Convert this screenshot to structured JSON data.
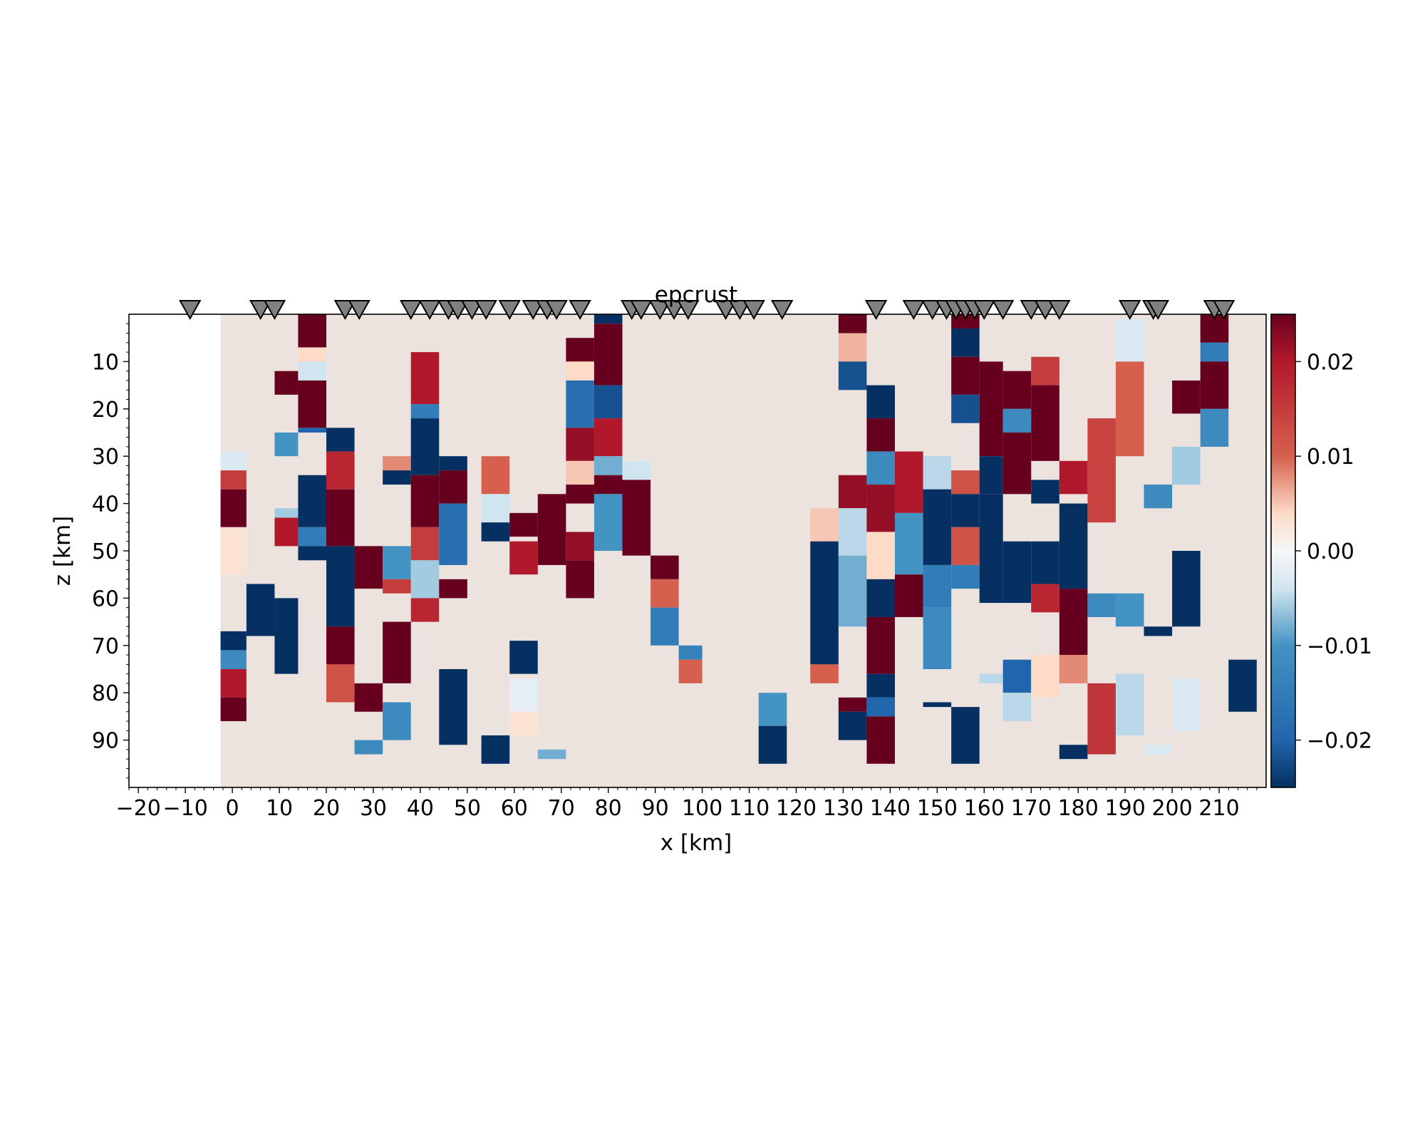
{
  "chart_data": {
    "type": "heatmap",
    "title": "epcrust",
    "xlabel": "x [km]",
    "ylabel": "z [km]",
    "xlim": [
      -22,
      220
    ],
    "ylim": [
      100,
      0
    ],
    "x_ticks": [
      "−20",
      "−10",
      "0",
      "10",
      "20",
      "30",
      "40",
      "50",
      "60",
      "70",
      "80",
      "90",
      "100",
      "110",
      "120",
      "130",
      "140",
      "150",
      "160",
      "170",
      "180",
      "190",
      "200",
      "210"
    ],
    "x_tick_values": [
      -20,
      -10,
      0,
      10,
      20,
      30,
      40,
      50,
      60,
      70,
      80,
      90,
      100,
      110,
      120,
      130,
      140,
      150,
      160,
      170,
      180,
      190,
      200,
      210
    ],
    "y_ticks": [
      "10",
      "20",
      "30",
      "40",
      "50",
      "60",
      "70",
      "80",
      "90"
    ],
    "y_tick_values": [
      10,
      20,
      30,
      40,
      50,
      60,
      70,
      80,
      90
    ],
    "colorbar": {
      "min": -0.025,
      "max": 0.025,
      "ticks": [
        "0.02",
        "0.01",
        "0.00",
        "−0.01",
        "−0.02"
      ],
      "tick_values": [
        0.02,
        0.01,
        0.0,
        -0.01,
        -0.02
      ],
      "colormap": "diverging blue-white-red",
      "colors": {
        "neg": "#053061",
        "mid": "#f7f7f7",
        "pos": "#67001f"
      }
    },
    "background_value": 0.001,
    "field_x_start": -2.5,
    "stations_x": [
      -9,
      6,
      9,
      24,
      27,
      38,
      42,
      46,
      48,
      51,
      54,
      59,
      64,
      67,
      69,
      74,
      85,
      87,
      91,
      94,
      97,
      105,
      108,
      111,
      117,
      137,
      145,
      149,
      152,
      154,
      156,
      158,
      160,
      164,
      170,
      173,
      176,
      191,
      196,
      197,
      209,
      211
    ],
    "anomaly_columns": [
      {
        "x0": -2.5,
        "x1": 3,
        "cells": [
          [
            29,
            33,
            -0.003
          ],
          [
            33,
            37,
            0.015
          ],
          [
            37,
            45,
            0.025
          ],
          [
            45,
            55,
            0.003
          ],
          [
            67,
            71,
            -0.025
          ],
          [
            71,
            75,
            -0.012
          ],
          [
            75,
            81,
            0.02
          ],
          [
            81,
            86,
            0.025
          ]
        ]
      },
      {
        "x0": 3,
        "x1": 9,
        "cells": [
          [
            57,
            68,
            -0.025
          ]
        ]
      },
      {
        "x0": 9,
        "x1": 14,
        "cells": [
          [
            12,
            17,
            0.025
          ],
          [
            25,
            30,
            -0.01
          ],
          [
            41,
            43,
            -0.006
          ],
          [
            43,
            49,
            0.02
          ],
          [
            60,
            76,
            -0.025
          ]
        ]
      },
      {
        "x0": 14,
        "x1": 20,
        "cells": [
          [
            0,
            7,
            0.025
          ],
          [
            7,
            10,
            0.004
          ],
          [
            10,
            14,
            -0.004
          ],
          [
            14,
            24,
            0.025
          ],
          [
            24,
            25,
            -0.02
          ],
          [
            34,
            45,
            -0.025
          ],
          [
            45,
            49,
            -0.015
          ],
          [
            49,
            52,
            -0.025
          ]
        ]
      },
      {
        "x0": 20,
        "x1": 26,
        "cells": [
          [
            24,
            29,
            -0.025
          ],
          [
            29,
            37,
            0.018
          ],
          [
            37,
            49,
            0.025
          ],
          [
            49,
            66,
            -0.025
          ],
          [
            66,
            74,
            0.025
          ],
          [
            74,
            82,
            0.012
          ]
        ]
      },
      {
        "x0": 26,
        "x1": 32,
        "cells": [
          [
            49,
            58,
            0.025
          ],
          [
            78,
            84,
            0.025
          ],
          [
            90,
            93,
            -0.012
          ]
        ]
      },
      {
        "x0": 32,
        "x1": 38,
        "cells": [
          [
            30,
            33,
            0.008
          ],
          [
            33,
            36,
            -0.025
          ],
          [
            49,
            56,
            -0.01
          ],
          [
            56,
            59,
            0.015
          ],
          [
            65,
            78,
            0.025
          ],
          [
            82,
            90,
            -0.012
          ]
        ]
      },
      {
        "x0": 38,
        "x1": 44,
        "cells": [
          [
            8,
            19,
            0.02
          ],
          [
            19,
            22,
            -0.015
          ],
          [
            22,
            34,
            -0.025
          ],
          [
            34,
            45,
            0.025
          ],
          [
            45,
            52,
            0.015
          ],
          [
            52,
            60,
            -0.006
          ],
          [
            60,
            65,
            0.018
          ]
        ]
      },
      {
        "x0": 44,
        "x1": 50,
        "cells": [
          [
            30,
            33,
            -0.025
          ],
          [
            33,
            40,
            0.025
          ],
          [
            40,
            53,
            -0.018
          ],
          [
            56,
            60,
            0.025
          ],
          [
            75,
            91,
            -0.025
          ]
        ]
      },
      {
        "x0": 53,
        "x1": 59,
        "cells": [
          [
            30,
            38,
            0.01
          ],
          [
            38,
            44,
            -0.004
          ],
          [
            44,
            48,
            -0.025
          ],
          [
            89,
            95,
            -0.025
          ]
        ]
      },
      {
        "x0": 59,
        "x1": 65,
        "cells": [
          [
            42,
            47,
            0.025
          ],
          [
            48,
            55,
            0.02
          ],
          [
            69,
            76,
            -0.025
          ],
          [
            77,
            84,
            -0.002
          ],
          [
            84,
            89,
            0.003
          ]
        ]
      },
      {
        "x0": 65,
        "x1": 71,
        "cells": [
          [
            38,
            53,
            0.025
          ],
          [
            92,
            94,
            -0.008
          ]
        ]
      },
      {
        "x0": 71,
        "x1": 77,
        "cells": [
          [
            5,
            10,
            0.025
          ],
          [
            10,
            14,
            0.004
          ],
          [
            14,
            24,
            -0.018
          ],
          [
            24,
            31,
            0.022
          ],
          [
            31,
            36,
            0.005
          ],
          [
            36,
            40,
            0.025
          ],
          [
            46,
            52,
            0.022
          ],
          [
            52,
            60,
            0.025
          ]
        ]
      },
      {
        "x0": 77,
        "x1": 83,
        "cells": [
          [
            0,
            2,
            -0.025
          ],
          [
            2,
            15,
            0.025
          ],
          [
            15,
            22,
            -0.022
          ],
          [
            22,
            30,
            0.02
          ],
          [
            30,
            34,
            -0.008
          ],
          [
            34,
            38,
            0.025
          ],
          [
            38,
            50,
            -0.01
          ]
        ]
      },
      {
        "x0": 83,
        "x1": 89,
        "cells": [
          [
            31,
            35,
            -0.004
          ],
          [
            35,
            51,
            0.025
          ]
        ]
      },
      {
        "x0": 89,
        "x1": 95,
        "cells": [
          [
            51,
            56,
            0.025
          ],
          [
            56,
            62,
            0.01
          ],
          [
            62,
            70,
            -0.015
          ]
        ]
      },
      {
        "x0": 95,
        "x1": 100,
        "cells": [
          [
            70,
            73,
            -0.014
          ],
          [
            73,
            78,
            0.01
          ]
        ]
      },
      {
        "x0": 112,
        "x1": 118,
        "cells": [
          [
            80,
            87,
            -0.01
          ],
          [
            87,
            95,
            -0.025
          ]
        ]
      },
      {
        "x0": 123,
        "x1": 129,
        "cells": [
          [
            41,
            48,
            0.005
          ],
          [
            48,
            74,
            -0.025
          ],
          [
            74,
            78,
            0.01
          ]
        ]
      },
      {
        "x0": 129,
        "x1": 135,
        "cells": [
          [
            0,
            4,
            0.025
          ],
          [
            4,
            10,
            0.006
          ],
          [
            10,
            16,
            -0.022
          ],
          [
            34,
            41,
            0.022
          ],
          [
            41,
            51,
            -0.005
          ],
          [
            51,
            66,
            -0.008
          ],
          [
            81,
            84,
            0.025
          ],
          [
            84,
            90,
            -0.025
          ]
        ]
      },
      {
        "x0": 135,
        "x1": 141,
        "cells": [
          [
            15,
            22,
            -0.025
          ],
          [
            22,
            29,
            0.025
          ],
          [
            29,
            36,
            -0.012
          ],
          [
            36,
            46,
            0.022
          ],
          [
            46,
            56,
            0.004
          ],
          [
            56,
            64,
            -0.025
          ],
          [
            64,
            76,
            0.025
          ],
          [
            76,
            81,
            -0.025
          ],
          [
            81,
            85,
            -0.02
          ],
          [
            85,
            95,
            0.025
          ]
        ]
      },
      {
        "x0": 141,
        "x1": 147,
        "cells": [
          [
            29,
            42,
            0.02
          ],
          [
            42,
            55,
            -0.01
          ],
          [
            55,
            64,
            0.025
          ]
        ]
      },
      {
        "x0": 147,
        "x1": 153,
        "cells": [
          [
            30,
            37,
            -0.005
          ],
          [
            37,
            53,
            -0.025
          ],
          [
            53,
            62,
            -0.015
          ],
          [
            62,
            75,
            -0.012
          ],
          [
            82,
            83,
            -0.025
          ]
        ]
      },
      {
        "x0": 153,
        "x1": 159,
        "cells": [
          [
            0,
            3,
            0.025
          ],
          [
            3,
            9,
            -0.025
          ],
          [
            9,
            17,
            0.025
          ],
          [
            17,
            23,
            -0.022
          ],
          [
            33,
            38,
            0.012
          ],
          [
            38,
            45,
            -0.025
          ],
          [
            45,
            53,
            0.012
          ],
          [
            53,
            58,
            -0.015
          ],
          [
            83,
            95,
            -0.025
          ]
        ]
      },
      {
        "x0": 159,
        "x1": 164,
        "cells": [
          [
            10,
            18,
            0.025
          ],
          [
            18,
            30,
            0.025
          ],
          [
            30,
            38,
            -0.025
          ],
          [
            38,
            61,
            -0.025
          ],
          [
            76,
            78,
            -0.005
          ]
        ]
      },
      {
        "x0": 164,
        "x1": 170,
        "cells": [
          [
            12,
            20,
            0.025
          ],
          [
            20,
            25,
            -0.012
          ],
          [
            25,
            38,
            0.025
          ],
          [
            48,
            61,
            -0.025
          ],
          [
            73,
            80,
            -0.02
          ],
          [
            80,
            86,
            -0.005
          ]
        ]
      },
      {
        "x0": 170,
        "x1": 176,
        "cells": [
          [
            9,
            15,
            0.015
          ],
          [
            15,
            31,
            0.025
          ],
          [
            35,
            40,
            -0.025
          ],
          [
            48,
            57,
            -0.025
          ],
          [
            57,
            63,
            0.018
          ],
          [
            72,
            81,
            0.004
          ]
        ]
      },
      {
        "x0": 176,
        "x1": 182,
        "cells": [
          [
            31,
            38,
            0.02
          ],
          [
            40,
            58,
            -0.025
          ],
          [
            58,
            72,
            0.025
          ],
          [
            72,
            78,
            0.008
          ],
          [
            91,
            94,
            -0.025
          ]
        ]
      },
      {
        "x0": 182,
        "x1": 188,
        "cells": [
          [
            22,
            44,
            0.014
          ],
          [
            59,
            64,
            -0.012
          ],
          [
            78,
            93,
            0.016
          ]
        ]
      },
      {
        "x0": 188,
        "x1": 194,
        "cells": [
          [
            1,
            10,
            -0.003
          ],
          [
            10,
            30,
            0.01
          ],
          [
            59,
            66,
            -0.01
          ],
          [
            76,
            89,
            -0.005
          ]
        ]
      },
      {
        "x0": 194,
        "x1": 200,
        "cells": [
          [
            36,
            41,
            -0.012
          ],
          [
            66,
            68,
            -0.025
          ],
          [
            91,
            93,
            -0.003
          ]
        ]
      },
      {
        "x0": 200,
        "x1": 206,
        "cells": [
          [
            14,
            21,
            0.025
          ],
          [
            28,
            36,
            -0.006
          ],
          [
            50,
            66,
            -0.025
          ],
          [
            77,
            88,
            -0.003
          ]
        ]
      },
      {
        "x0": 206,
        "x1": 212,
        "cells": [
          [
            0,
            6,
            0.025
          ],
          [
            6,
            10,
            -0.015
          ],
          [
            10,
            20,
            0.025
          ],
          [
            20,
            28,
            -0.012
          ]
        ]
      },
      {
        "x0": 212,
        "x1": 218,
        "cells": [
          [
            73,
            84,
            -0.025
          ]
        ]
      }
    ]
  }
}
